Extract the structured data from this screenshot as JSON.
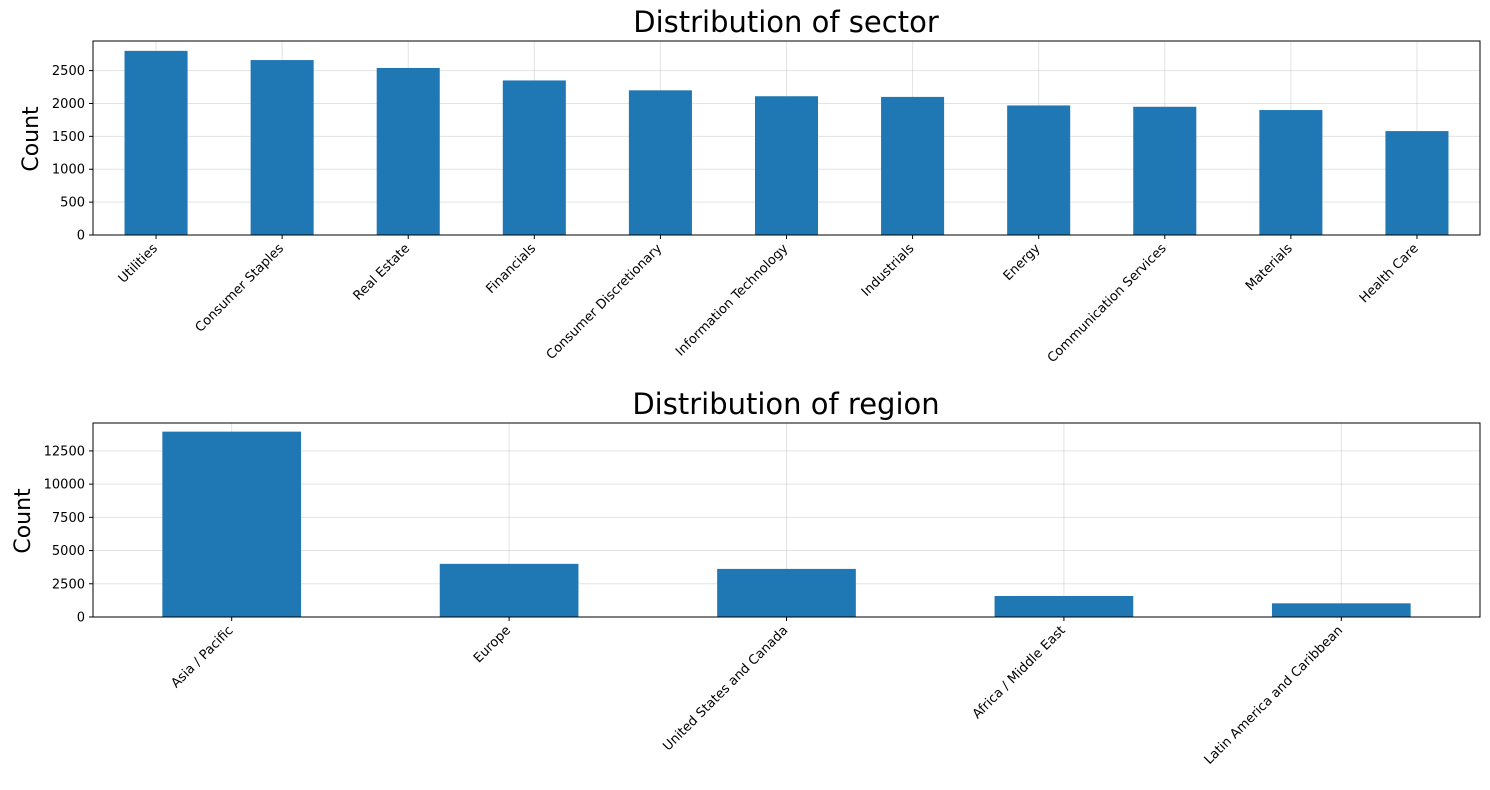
{
  "chart_data": [
    {
      "type": "bar",
      "title": "Distribution of sector",
      "xlabel": "",
      "ylabel": "Count",
      "ylim": [
        0,
        2950
      ],
      "yticks": [
        0,
        500,
        1000,
        1500,
        2000,
        2500
      ],
      "grid": true,
      "bar_color": "#1f77b4",
      "categories": [
        "Utilities",
        "Consumer Staples",
        "Real Estate",
        "Financials",
        "Consumer Discretionary",
        "Information Technology",
        "Industrials",
        "Energy",
        "Communication Services",
        "Materials",
        "Health Care"
      ],
      "values": [
        2800,
        2660,
        2540,
        2350,
        2200,
        2110,
        2100,
        1970,
        1950,
        1900,
        1580
      ]
    },
    {
      "type": "bar",
      "title": "Distribution of region",
      "xlabel": "",
      "ylabel": "Count",
      "ylim": [
        0,
        14600
      ],
      "yticks": [
        0,
        2500,
        5000,
        7500,
        10000,
        12500
      ],
      "grid": true,
      "bar_color": "#1f77b4",
      "categories": [
        "Asia / Pacific",
        "Europe",
        "United States and Canada",
        "Africa / Middle East",
        "Latin America and Caribbean"
      ],
      "values": [
        13950,
        4000,
        3620,
        1580,
        1030
      ]
    }
  ]
}
